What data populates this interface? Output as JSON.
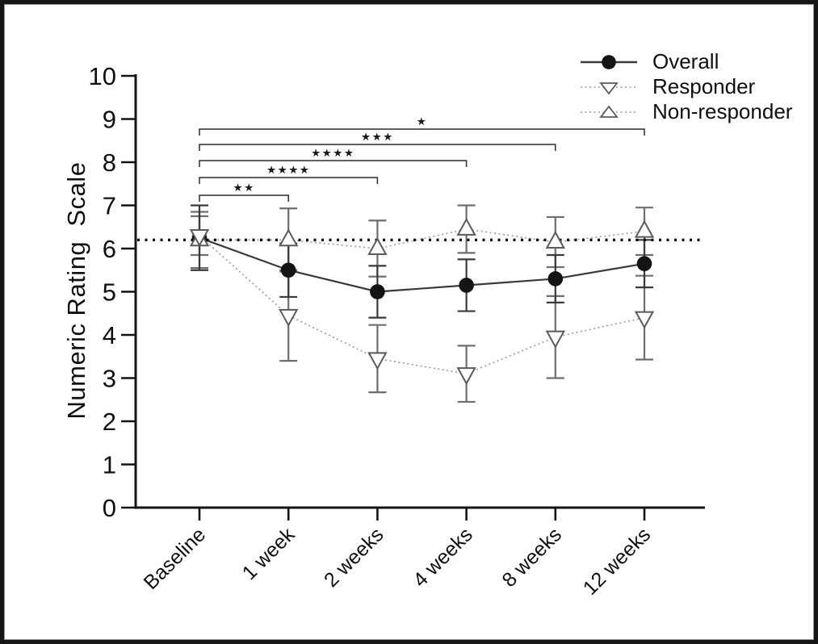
{
  "figure": {
    "background_color": "#ffffff",
    "border_color": "#161616"
  },
  "chart_data": {
    "type": "line",
    "title": "",
    "xlabel": "",
    "ylabel": "Numeric Rating  Scale",
    "ylim": [
      0,
      10
    ],
    "yticks": [
      0,
      1,
      2,
      3,
      4,
      5,
      6,
      7,
      8,
      9,
      10
    ],
    "grid": false,
    "categories": [
      "Baseline",
      "1 week",
      "2 weeks",
      "4 weeks",
      "8 weeks",
      "12 weeks"
    ],
    "reference_line": {
      "value": 6.2,
      "style": "dotted",
      "color": "#101010"
    },
    "series": [
      {
        "name": "Overall",
        "marker": "filled-circle",
        "line_style": "solid",
        "line_color": "#3a3a3a",
        "marker_color": "#141414",
        "marker_stroke": "#141414",
        "error_color": "#3a3a3a",
        "values": [
          6.25,
          5.5,
          5.0,
          5.15,
          5.3,
          5.65
        ],
        "errors": [
          0.75,
          0.62,
          0.6,
          0.6,
          0.55,
          0.55
        ]
      },
      {
        "name": "Responder",
        "marker": "open-triangle-down",
        "line_style": "dotted",
        "line_color": "#9a9a9a",
        "marker_color": "#ffffff",
        "marker_stroke": "#5a5a5a",
        "error_color": "#6e6e6e",
        "values": [
          6.3,
          4.45,
          3.45,
          3.1,
          3.95,
          4.4
        ],
        "errors": [
          0.45,
          1.05,
          0.78,
          0.65,
          0.95,
          0.97
        ]
      },
      {
        "name": "Non-responder",
        "marker": "open-triangle-up",
        "line_style": "dotted",
        "line_color": "#9a9a9a",
        "marker_color": "#ffffff",
        "marker_stroke": "#5a5a5a",
        "error_color": "#6e6e6e",
        "values": [
          6.2,
          6.2,
          6.0,
          6.45,
          6.15,
          6.4
        ],
        "errors": [
          0.65,
          0.73,
          0.65,
          0.55,
          0.58,
          0.55
        ]
      }
    ],
    "significance_brackets": [
      {
        "from": "Baseline",
        "to": "1 week",
        "label": "**"
      },
      {
        "from": "Baseline",
        "to": "2 weeks",
        "label": "****"
      },
      {
        "from": "Baseline",
        "to": "4 weeks",
        "label": "****"
      },
      {
        "from": "Baseline",
        "to": "8 weeks",
        "label": "***"
      },
      {
        "from": "Baseline",
        "to": "12 weeks",
        "label": "*"
      }
    ],
    "legend": {
      "position": "top-right"
    }
  }
}
